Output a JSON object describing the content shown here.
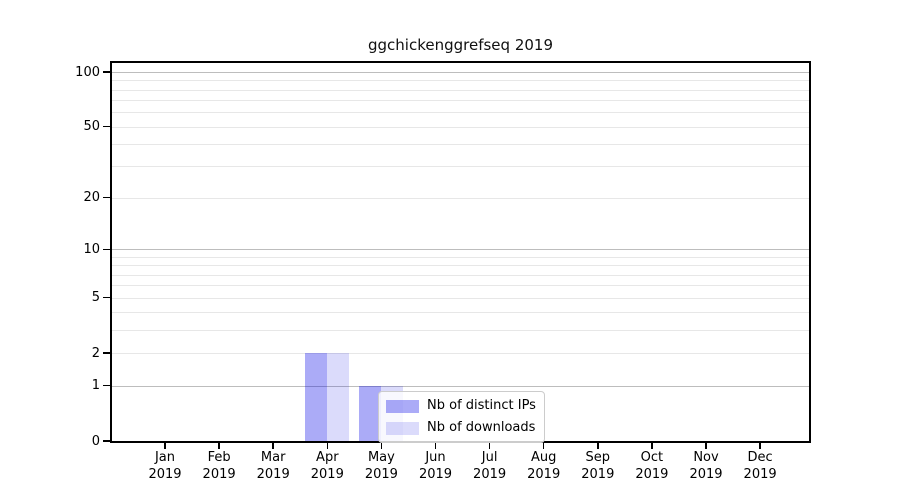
{
  "chart_data": {
    "type": "bar",
    "title": "ggchickenggrefseq 2019",
    "categories": [
      "Jan 2019",
      "Feb 2019",
      "Mar 2019",
      "Apr 2019",
      "May 2019",
      "Jun 2019",
      "Jul 2019",
      "Aug 2019",
      "Sep 2019",
      "Oct 2019",
      "Nov 2019",
      "Dec 2019"
    ],
    "series": [
      {
        "name": "Nb of distinct IPs",
        "color": "rgba(0,0,230,0.33)",
        "approx_solid_color": "#aaaaf6",
        "values": [
          0,
          0,
          0,
          2,
          1,
          0,
          0,
          0,
          0,
          0,
          0,
          0
        ]
      },
      {
        "name": "Nb of downloads",
        "color": "rgba(0,0,230,0.14)",
        "approx_solid_color": "#dcdcfa",
        "values": [
          0,
          0,
          0,
          2,
          1,
          0,
          0,
          0,
          0,
          0,
          0,
          0
        ]
      }
    ],
    "xlabel": "",
    "ylabel": "",
    "yscale": "log1p",
    "ylim": [
      0,
      113
    ],
    "ytick_labels": [
      "100",
      "50",
      "20",
      "10",
      "5",
      "2",
      "1",
      "0"
    ],
    "yticks": [
      100,
      50,
      20,
      10,
      5,
      2,
      1,
      0
    ],
    "major_gridlines": [
      1,
      10,
      100
    ],
    "minor_gridlines": [
      2,
      3,
      4,
      5,
      6,
      7,
      8,
      9,
      20,
      30,
      40,
      50,
      60,
      70,
      80,
      90
    ],
    "grid": "horizontal",
    "legend_position": "lower-center"
  },
  "colors": {
    "background": "#ffffff",
    "spine": "#000000",
    "major_grid": "#bdbdbd",
    "minor_grid": "#e7e7e7",
    "legend_border": "#cccccc",
    "legend_background": "rgba(255,255,255,0.8)",
    "title_color": "#111111"
  }
}
